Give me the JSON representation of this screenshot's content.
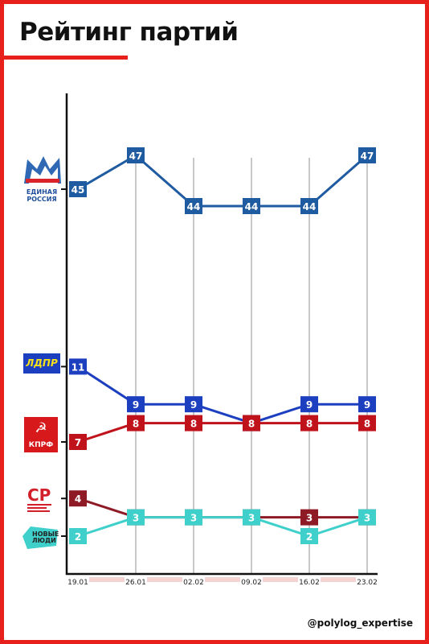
{
  "title": "Рейтинг партий",
  "handle": "@polylog_expertise",
  "colors": {
    "accent": "#e8201c",
    "edinaya_rossiya": "#1f5ba0",
    "ldpr": "#1c3fbf",
    "kprf": "#c0121a",
    "sr": "#8e1a26",
    "novye_lyudi": "#3fd0cb"
  },
  "logos": {
    "edinaya_rossiya": {
      "icon": "bear-icon",
      "text_line1": "ЕДИНАЯ",
      "text_line2": "РОССИЯ"
    },
    "ldpr": {
      "text": "ЛДПР"
    },
    "kprf": {
      "icon": "hammer-sickle-icon",
      "text": "КПРФ"
    },
    "sr": {
      "icon": "sr-logo-icon",
      "text": "СР"
    },
    "novye_lyudi": {
      "icon": "novye-lyudi-icon",
      "text_line1": "НОВЫЕ",
      "text_line2": "ЛЮДИ"
    }
  },
  "chart_data": {
    "type": "line",
    "title": "Рейтинг партий",
    "categories": [
      "19.01",
      "26.01",
      "02.02",
      "09.02",
      "16.02",
      "23.02"
    ],
    "grid": "vertical",
    "series": [
      {
        "key": "edinaya_rossiya",
        "name": "ЕДИНАЯ РОССИЯ",
        "values": [
          45,
          47,
          44,
          44,
          44,
          47
        ],
        "color": "#1f5ba0"
      },
      {
        "key": "ldpr",
        "name": "ЛДПР",
        "values": [
          11,
          9,
          9,
          8,
          9,
          9
        ],
        "color": "#1c3fbf"
      },
      {
        "key": "kprf",
        "name": "КПРФ",
        "values": [
          7,
          8,
          8,
          8,
          8,
          8
        ],
        "color": "#c0121a"
      },
      {
        "key": "sr",
        "name": "СР",
        "values": [
          4,
          3,
          3,
          3,
          3,
          3
        ],
        "color": "#8e1a26"
      },
      {
        "key": "novye_lyudi",
        "name": "НОВЫЕ ЛЮДИ",
        "values": [
          2,
          3,
          3,
          3,
          2,
          3
        ],
        "color": "#3fd0cb"
      }
    ]
  }
}
